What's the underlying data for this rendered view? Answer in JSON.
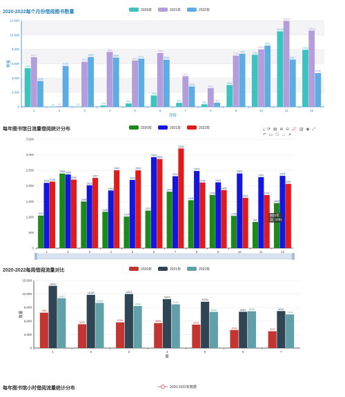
{
  "chart_data": [
    {
      "type": "bar",
      "title": "2020-2022每个月份借阅图书数量",
      "xlabel": "月份",
      "ylabel": "数量",
      "ylim": [
        0,
        12000
      ],
      "yticks": [
        0,
        2000,
        4000,
        6000,
        8000,
        10000,
        12000
      ],
      "categories": [
        "1",
        "2",
        "3",
        "4",
        "5",
        "6",
        "7",
        "8",
        "9",
        "10",
        "11",
        "12"
      ],
      "legend_position": "top-center",
      "series": [
        {
          "name": "2020年",
          "color": "#3cc3c0",
          "values": [
            5383,
            24,
            53,
            194,
            469,
            1585,
            557,
            353,
            3042,
            7251,
            10515,
            7939
          ],
          "labels": [
            "5383",
            "24",
            "53",
            "194",
            "469",
            "1585",
            "557",
            "353",
            "3042",
            "7251",
            "10515",
            "7939"
          ]
        },
        {
          "name": "2021年",
          "color": "#b39ddb",
          "values": [
            6917,
            98,
            6275,
            7651,
            6447,
            7495,
            4271,
            2610,
            7142,
            8000,
            11973,
            10624
          ],
          "labels": [
            "6917",
            "98",
            "6275",
            "7651",
            "6447",
            "7495",
            "4271",
            "2610",
            "7142",
            "8000",
            "11973",
            "10624"
          ]
        },
        {
          "name": "2022年",
          "color": "#5dade2",
          "values": [
            3608,
            5702,
            6939,
            6868,
            6711,
            6558,
            2835,
            581,
            7400,
            8532,
            6587,
            4708
          ],
          "labels": [
            "3608",
            "5702",
            "6939",
            "6868",
            "6711",
            "6558",
            "2835",
            "581",
            "7400",
            "8532",
            "6587",
            "4708"
          ]
        }
      ]
    },
    {
      "type": "bar",
      "title": "每年图书馆日流量借阅统计分布",
      "ylim": [
        0,
        3500
      ],
      "yticks": [
        0,
        500,
        1000,
        1500,
        2000,
        2500,
        3000,
        3500
      ],
      "categories": [
        "1",
        "2",
        "3",
        "4",
        "5",
        "6",
        "7",
        "8",
        "9",
        "10",
        "11",
        "12"
      ],
      "legend_position": "top-center",
      "tooltip": {
        "title": "2021年",
        "value": "11 : 2281"
      },
      "series": [
        {
          "name": "2020年",
          "color": "#1b8a1b",
          "values": [
            1047,
            2398,
            1498,
            1168,
            1014,
            1207,
            1815,
            1541,
            1709,
            1038,
            841,
            1449
          ],
          "labels": [
            "1047",
            "2398",
            "1498",
            "1168",
            "1014",
            "1207",
            "1815",
            "1541",
            "1709",
            "1038",
            "841",
            "1449"
          ]
        },
        {
          "name": "2021年",
          "color": "#1515e0",
          "values": [
            2099,
            2368,
            2021,
            1853,
            2192,
            2923,
            2312,
            2479,
            2115,
            2400,
            2281,
            2324
          ],
          "labels": [
            "2099",
            "2368",
            "2021",
            "1853",
            "2192",
            "2923",
            "2312",
            "2479",
            "2115",
            "2400",
            "2281",
            "2324"
          ]
        },
        {
          "name": "2022年",
          "color": "#e01b1b",
          "values": [
            2138,
            2202,
            2257,
            2502,
            2500,
            2864,
            3204,
            2108,
            1865,
            1615,
            1707,
            2067
          ],
          "labels": [
            "2138",
            "2202",
            "2257",
            "2502",
            "2500",
            "2864",
            "3204",
            "2108",
            "1865",
            "1615",
            "1707",
            "2067"
          ]
        }
      ]
    },
    {
      "type": "bar",
      "title": "2020-2022每周借阅流量对比",
      "xlabel": "周",
      "ylabel": "数量",
      "ylim": [
        0,
        15000
      ],
      "yticks": [
        0,
        3000,
        6000,
        9000,
        12000,
        15000
      ],
      "categories": [
        "1",
        "2",
        "3",
        "4",
        "5",
        "6",
        "7"
      ],
      "legend_position": "top-center",
      "series": [
        {
          "name": "2020年",
          "color": "#c23531",
          "values": [
            7861,
            5294,
            5706,
            5559,
            5205,
            4016,
            3737
          ],
          "labels": [
            "7861",
            "5294",
            "5706",
            "5559",
            "5205",
            "4016",
            "3737"
          ]
        },
        {
          "name": "2021年",
          "color": "#2f4554",
          "values": [
            13813,
            11830,
            12011,
            10870,
            10294,
            8063,
            8220
          ],
          "labels": [
            "13813",
            "11830",
            "12011",
            "10870",
            "10294",
            "8063",
            "8220"
          ]
        },
        {
          "name": "2022年",
          "color": "#61a0a8",
          "values": [
            11057,
            10028,
            9344,
            9713,
            8035,
            8180,
            7474
          ],
          "labels": [
            "11057",
            "10028",
            "9344",
            "9713",
            "8035",
            "8180",
            "7474"
          ]
        }
      ]
    },
    {
      "type": "line",
      "title": "每年图书馆小时借阅流量统计分布",
      "legend_position": "top-center",
      "series": [
        {
          "name": "2020-2022年数据",
          "color": "#e06666",
          "values": []
        }
      ]
    }
  ]
}
